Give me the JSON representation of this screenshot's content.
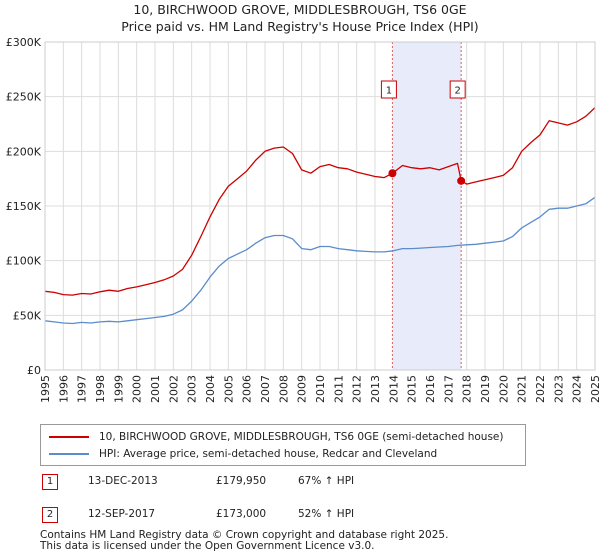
{
  "title": "10, BIRCHWOOD GROVE, MIDDLESBROUGH, TS6 0GE",
  "subtitle": "Price paid vs. HM Land Registry's House Price Index (HPI)",
  "chart_data": {
    "type": "line",
    "title": "10, BIRCHWOOD GROVE, MIDDLESBROUGH, TS6 0GE",
    "subtitle": "Price paid vs. HM Land Registry's House Price Index (HPI)",
    "xlabel": "",
    "ylabel": "",
    "xlim": [
      1995,
      2025
    ],
    "ylim": [
      0,
      300000
    ],
    "grid": true,
    "y_ticks": [
      0,
      50000,
      100000,
      150000,
      200000,
      250000,
      300000
    ],
    "y_tick_labels": [
      "£0",
      "£50K",
      "£100K",
      "£150K",
      "£200K",
      "£250K",
      "£300K"
    ],
    "x_ticks": [
      1995,
      1996,
      1997,
      1998,
      1999,
      2000,
      2001,
      2002,
      2003,
      2004,
      2005,
      2006,
      2007,
      2008,
      2009,
      2010,
      2011,
      2012,
      2013,
      2014,
      2015,
      2016,
      2017,
      2018,
      2019,
      2020,
      2021,
      2022,
      2023,
      2024,
      2025
    ],
    "x_tick_labels": [
      "1995",
      "1996",
      "1997",
      "1998",
      "1999",
      "2000",
      "2001",
      "2002",
      "2003",
      "2004",
      "2005",
      "2006",
      "2007",
      "2008",
      "2009",
      "2010",
      "2011",
      "2012",
      "2013",
      "2014",
      "2015",
      "2016",
      "2017",
      "2018",
      "2019",
      "2020",
      "2021",
      "2022",
      "2023",
      "2024",
      "2025"
    ],
    "shaded_span": [
      2013.95,
      2017.7
    ],
    "series": [
      {
        "name": "10, BIRCHWOOD GROVE, MIDDLESBROUGH, TS6 0GE (semi-detached house)",
        "color": "#cc0000",
        "points": [
          [
            1995.0,
            72000
          ],
          [
            1995.5,
            71000
          ],
          [
            1996.0,
            69000
          ],
          [
            1996.5,
            68500
          ],
          [
            1997.0,
            70000
          ],
          [
            1997.5,
            69500
          ],
          [
            1998.0,
            71500
          ],
          [
            1998.5,
            73000
          ],
          [
            1999.0,
            72000
          ],
          [
            1999.5,
            74500
          ],
          [
            2000.0,
            76000
          ],
          [
            2000.5,
            78000
          ],
          [
            2001.0,
            80000
          ],
          [
            2001.5,
            82500
          ],
          [
            2002.0,
            86000
          ],
          [
            2002.5,
            92000
          ],
          [
            2003.0,
            105000
          ],
          [
            2003.5,
            122000
          ],
          [
            2004.0,
            140000
          ],
          [
            2004.5,
            156000
          ],
          [
            2005.0,
            168000
          ],
          [
            2005.5,
            175000
          ],
          [
            2006.0,
            182000
          ],
          [
            2006.5,
            192000
          ],
          [
            2007.0,
            200000
          ],
          [
            2007.5,
            203000
          ],
          [
            2008.0,
            204000
          ],
          [
            2008.5,
            198000
          ],
          [
            2009.0,
            183000
          ],
          [
            2009.5,
            180000
          ],
          [
            2010.0,
            186000
          ],
          [
            2010.5,
            188000
          ],
          [
            2011.0,
            185000
          ],
          [
            2011.5,
            184000
          ],
          [
            2012.0,
            181000
          ],
          [
            2012.5,
            179000
          ],
          [
            2013.0,
            177000
          ],
          [
            2013.5,
            176000
          ],
          [
            2013.95,
            179950
          ],
          [
            2014.5,
            187000
          ],
          [
            2015.0,
            185000
          ],
          [
            2015.5,
            184000
          ],
          [
            2016.0,
            185000
          ],
          [
            2016.5,
            183000
          ],
          [
            2017.0,
            186000
          ],
          [
            2017.5,
            189000
          ],
          [
            2017.7,
            173000
          ],
          [
            2018.0,
            170000
          ],
          [
            2018.5,
            172000
          ],
          [
            2019.0,
            174000
          ],
          [
            2019.5,
            176000
          ],
          [
            2020.0,
            178000
          ],
          [
            2020.5,
            185000
          ],
          [
            2021.0,
            200000
          ],
          [
            2021.5,
            208000
          ],
          [
            2022.0,
            215000
          ],
          [
            2022.5,
            228000
          ],
          [
            2023.0,
            226000
          ],
          [
            2023.5,
            224000
          ],
          [
            2024.0,
            227000
          ],
          [
            2024.5,
            232000
          ],
          [
            2025.0,
            240000
          ]
        ]
      },
      {
        "name": "HPI: Average price, semi-detached house, Redcar and Cleveland",
        "color": "#5b8ccc",
        "points": [
          [
            1995.0,
            45000
          ],
          [
            1995.5,
            44000
          ],
          [
            1996.0,
            43000
          ],
          [
            1996.5,
            42500
          ],
          [
            1997.0,
            43500
          ],
          [
            1997.5,
            43000
          ],
          [
            1998.0,
            44000
          ],
          [
            1998.5,
            44500
          ],
          [
            1999.0,
            44000
          ],
          [
            1999.5,
            45000
          ],
          [
            2000.0,
            46000
          ],
          [
            2000.5,
            47000
          ],
          [
            2001.0,
            48000
          ],
          [
            2001.5,
            49000
          ],
          [
            2002.0,
            51000
          ],
          [
            2002.5,
            55000
          ],
          [
            2003.0,
            63000
          ],
          [
            2003.5,
            73000
          ],
          [
            2004.0,
            85000
          ],
          [
            2004.5,
            95000
          ],
          [
            2005.0,
            102000
          ],
          [
            2005.5,
            106000
          ],
          [
            2006.0,
            110000
          ],
          [
            2006.5,
            116000
          ],
          [
            2007.0,
            121000
          ],
          [
            2007.5,
            123000
          ],
          [
            2008.0,
            123000
          ],
          [
            2008.5,
            120000
          ],
          [
            2009.0,
            111000
          ],
          [
            2009.5,
            110000
          ],
          [
            2010.0,
            113000
          ],
          [
            2010.5,
            113000
          ],
          [
            2011.0,
            111000
          ],
          [
            2011.5,
            110000
          ],
          [
            2012.0,
            109000
          ],
          [
            2012.5,
            108500
          ],
          [
            2013.0,
            108000
          ],
          [
            2013.5,
            108000
          ],
          [
            2014.0,
            109000
          ],
          [
            2014.5,
            111000
          ],
          [
            2015.0,
            111000
          ],
          [
            2015.5,
            111500
          ],
          [
            2016.0,
            112000
          ],
          [
            2016.5,
            112500
          ],
          [
            2017.0,
            113000
          ],
          [
            2017.5,
            114000
          ],
          [
            2018.0,
            114500
          ],
          [
            2018.5,
            115000
          ],
          [
            2019.0,
            116000
          ],
          [
            2019.5,
            117000
          ],
          [
            2020.0,
            118000
          ],
          [
            2020.5,
            122000
          ],
          [
            2021.0,
            130000
          ],
          [
            2021.5,
            135000
          ],
          [
            2022.0,
            140000
          ],
          [
            2022.5,
            147000
          ],
          [
            2023.0,
            148000
          ],
          [
            2023.5,
            148000
          ],
          [
            2024.0,
            150000
          ],
          [
            2024.5,
            152000
          ],
          [
            2025.0,
            158000
          ]
        ]
      }
    ],
    "transactions": [
      {
        "id": "1",
        "x": 2013.95,
        "price": 179950
      },
      {
        "id": "2",
        "x": 2017.7,
        "price": 173000
      }
    ]
  },
  "legend": [
    {
      "label": "10, BIRCHWOOD GROVE, MIDDLESBROUGH, TS6 0GE (semi-detached house)",
      "color": "#cc0000"
    },
    {
      "label": "HPI: Average price, semi-detached house, Redcar and Cleveland",
      "color": "#5b8ccc"
    }
  ],
  "transactions_table": [
    {
      "id": "1",
      "date": "13-DEC-2013",
      "price": "£179,950",
      "hpi": "67% ↑ HPI"
    },
    {
      "id": "2",
      "date": "12-SEP-2017",
      "price": "£173,000",
      "hpi": "52% ↑ HPI"
    }
  ],
  "footer": {
    "line1": "Contains HM Land Registry data © Crown copyright and database right 2025.",
    "line2": "This data is licensed under the Open Government Licence v3.0."
  }
}
